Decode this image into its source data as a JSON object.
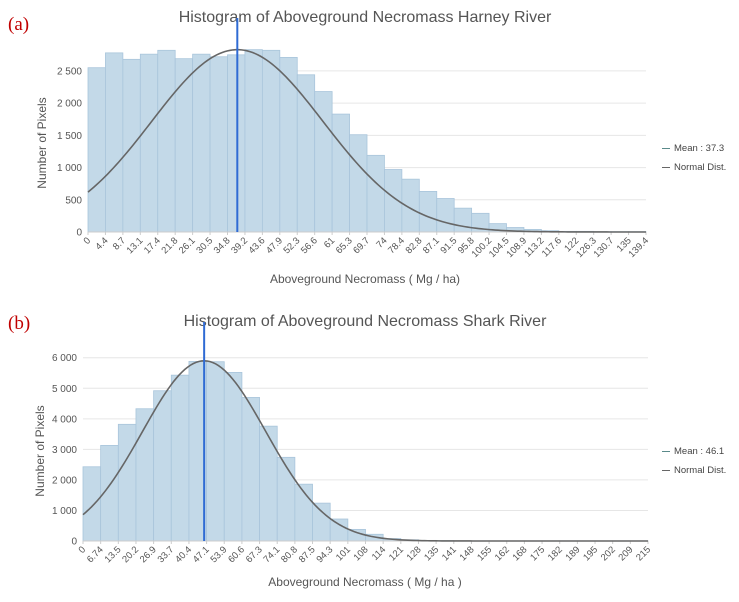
{
  "chart_data": [
    {
      "panel_label": "(a)",
      "type": "bar",
      "title": "Histogram of Aboveground Necromass Harney River",
      "xlabel": "Aboveground Necromass ( Mg / ha)",
      "ylabel": "Number of Pixels",
      "x_tick_labels": [
        "0",
        "4.4",
        "8.7",
        "13.1",
        "17.4",
        "21.8",
        "26.1",
        "30.5",
        "34.8",
        "39.2",
        "43.6",
        "47.9",
        "52.3",
        "56.6",
        "61",
        "65.3",
        "69.7",
        "74",
        "78.4",
        "82.8",
        "87.1",
        "91.5",
        "95.8",
        "100.2",
        "104.5",
        "108.9",
        "113.2",
        "117.6",
        "122",
        "126.3",
        "130.7",
        "135",
        "139.4"
      ],
      "bin_edges": [
        0,
        4.4,
        8.7,
        13.1,
        17.4,
        21.8,
        26.1,
        30.5,
        34.8,
        39.2,
        43.6,
        47.9,
        52.3,
        56.6,
        61,
        65.3,
        69.7,
        74,
        78.4,
        82.8,
        87.1,
        91.5,
        95.8,
        100.2,
        104.5,
        108.9,
        113.2,
        117.6,
        122,
        126.3,
        130.7,
        135,
        139.4
      ],
      "values": [
        2550,
        2780,
        2680,
        2760,
        2820,
        2690,
        2760,
        2720,
        2750,
        2830,
        2820,
        2710,
        2440,
        2180,
        1830,
        1510,
        1190,
        970,
        820,
        630,
        520,
        370,
        290,
        130,
        70,
        40,
        20,
        10,
        10,
        5,
        5,
        5
      ],
      "yticks": [
        0,
        500,
        1000,
        1500,
        2000,
        2500
      ],
      "ytick_labels": [
        "0",
        "500",
        "1 000",
        "1 500",
        "2 000",
        "2 500"
      ],
      "ylim": [
        0,
        2980
      ],
      "xlim": [
        0,
        139.4
      ],
      "mean": 37.3,
      "std": 21.4,
      "normal_peak": 2830,
      "legend_mean": "Mean : 37.3",
      "legend_normal": "Normal Dist.",
      "legend_position": "right",
      "colors": {
        "bar": "#c3d9e8",
        "bar_edge": "#a9c5db",
        "mean": "#2f6bd4",
        "normal": "#666666",
        "grid": "#e6e6e6"
      }
    },
    {
      "panel_label": "(b)",
      "type": "bar",
      "title": "Histogram of Aboveground Necromass Shark River",
      "xlabel": "Aboveground Necromass ( Mg / ha )",
      "ylabel": "Number of Pixels",
      "x_tick_labels": [
        "0",
        "6.74",
        "13.5",
        "20.2",
        "26.9",
        "33.7",
        "40.4",
        "47.1",
        "53.9",
        "60.6",
        "67.3",
        "74.1",
        "80.8",
        "87.5",
        "94.3",
        "101",
        "108",
        "114",
        "121",
        "128",
        "135",
        "141",
        "148",
        "155",
        "162",
        "168",
        "175",
        "182",
        "189",
        "195",
        "202",
        "209",
        "215"
      ],
      "bin_edges": [
        0,
        6.74,
        13.5,
        20.2,
        26.9,
        33.7,
        40.4,
        47.1,
        53.9,
        60.6,
        67.3,
        74.1,
        80.8,
        87.5,
        94.3,
        101,
        108,
        114,
        121,
        128,
        135,
        141,
        148,
        155,
        162,
        168,
        175,
        182,
        189,
        195,
        202,
        209,
        215
      ],
      "values": [
        2430,
        3130,
        3820,
        4330,
        4920,
        5430,
        5880,
        5870,
        5520,
        4700,
        3760,
        2740,
        1860,
        1240,
        720,
        380,
        220,
        80,
        40,
        20,
        10,
        5,
        5,
        5,
        5,
        5,
        5,
        5,
        5,
        5,
        5,
        5
      ],
      "yticks": [
        0,
        1000,
        2000,
        3000,
        4000,
        5000,
        6000
      ],
      "ytick_labels": [
        "0",
        "1 000",
        "2 000",
        "3 000",
        "4 000",
        "5 000",
        "6 000"
      ],
      "ylim": [
        0,
        6450
      ],
      "xlim": [
        0,
        215
      ],
      "mean": 46.1,
      "std": 23.5,
      "normal_peak": 5900,
      "legend_mean": "Mean : 46.1",
      "legend_normal": "Normal Dist.",
      "legend_position": "right",
      "colors": {
        "bar": "#c3d9e8",
        "bar_edge": "#a9c5db",
        "mean": "#2f6bd4",
        "normal": "#666666",
        "grid": "#e6e6e6"
      }
    }
  ]
}
